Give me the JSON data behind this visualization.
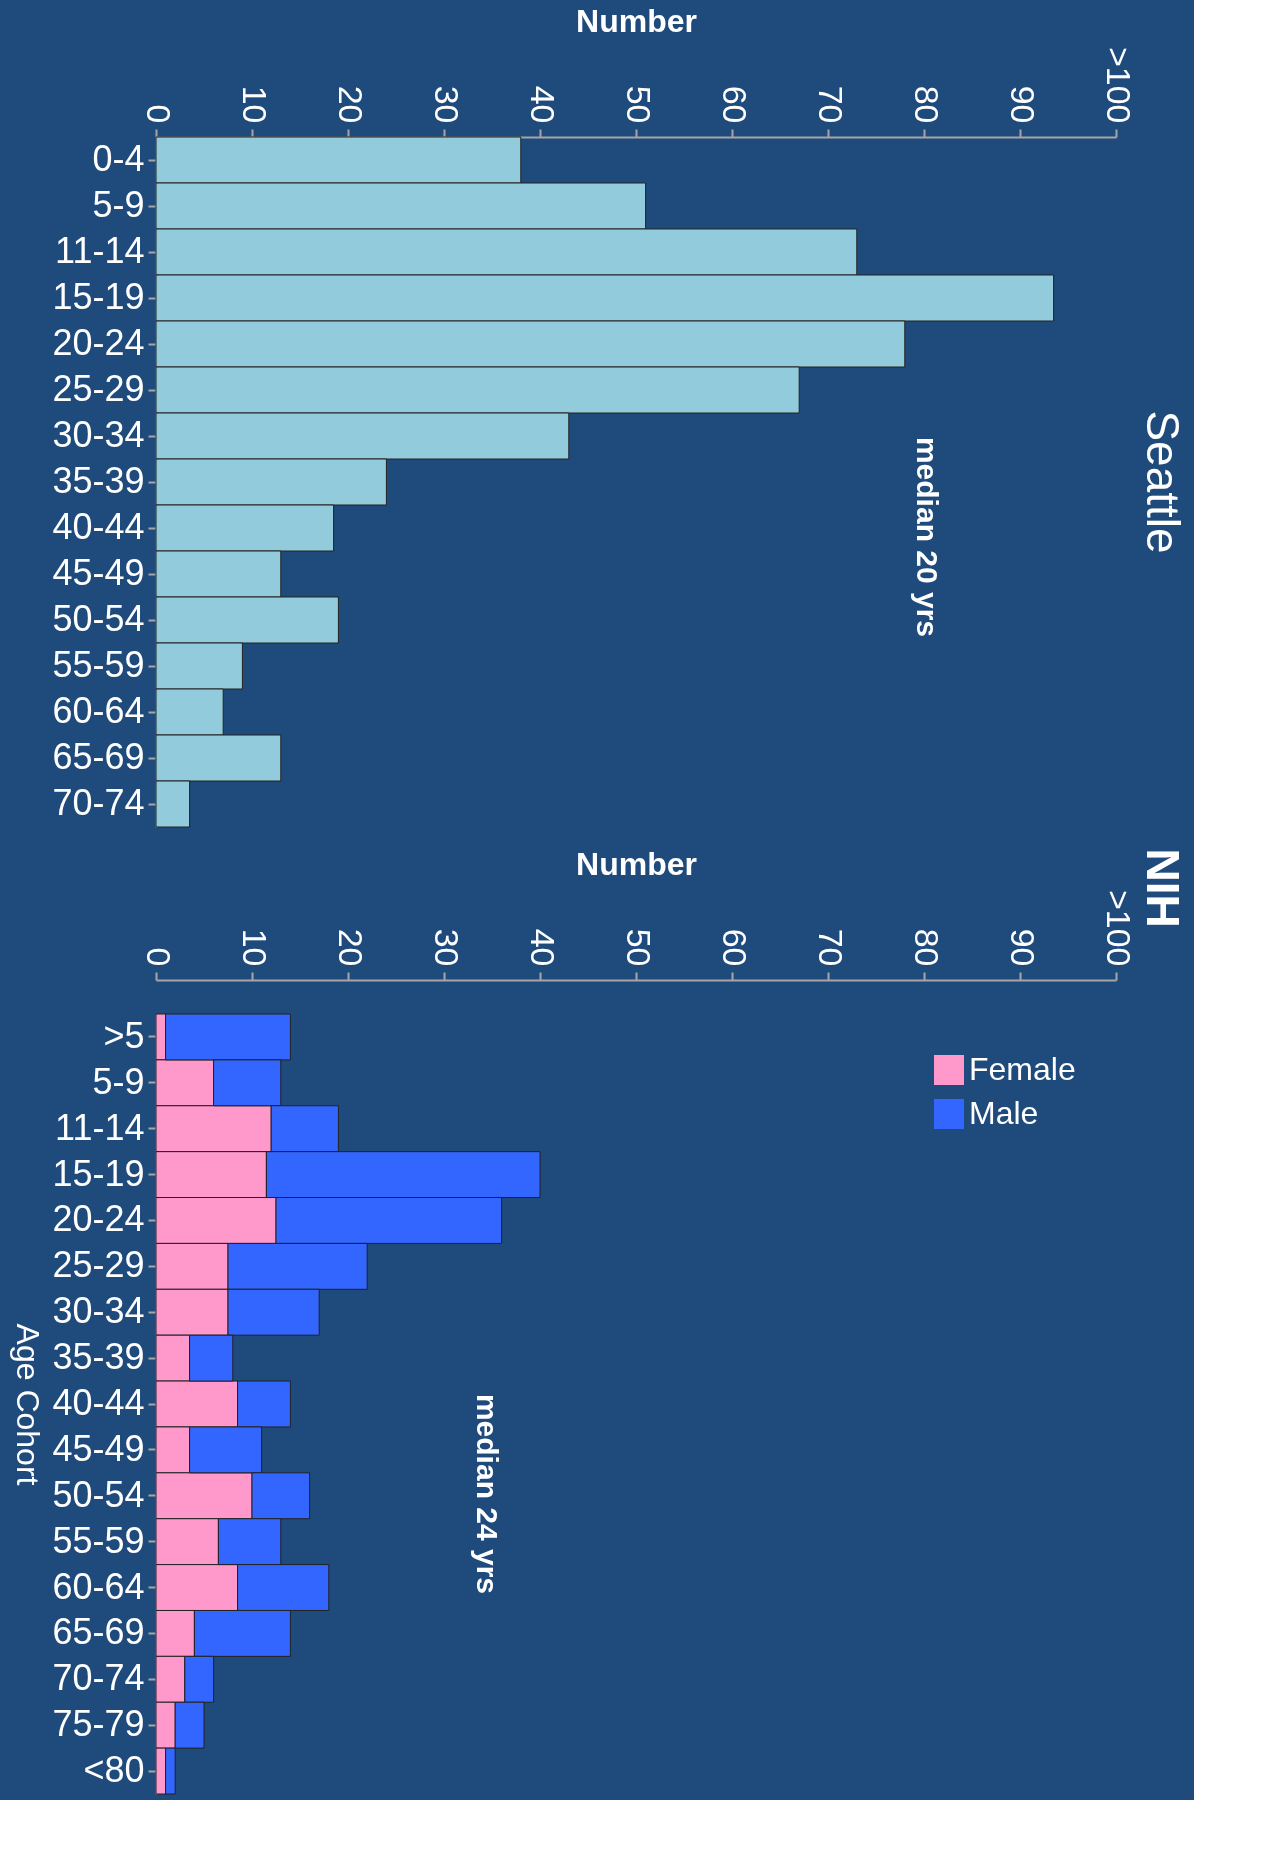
{
  "chart_data": [
    {
      "type": "bar",
      "orientation": "horizontal",
      "title": "Seattle",
      "xlabel": "Number",
      "categories": [
        "0-4",
        "5-9",
        "11-14",
        "15-19",
        "20-24",
        "25-29",
        "30-34",
        "35-39",
        "40-44",
        "45-49",
        "50-54",
        "55-59",
        "60-64",
        "65-69",
        "70-74"
      ],
      "values": [
        38,
        51,
        73,
        93.5,
        78,
        67,
        43,
        24,
        18.5,
        13,
        19,
        9,
        7,
        13,
        3.5
      ],
      "color": "#92cbdc",
      "xlim": [
        0,
        100
      ],
      "xticks": [
        0,
        10,
        20,
        30,
        40,
        50,
        60,
        70,
        80,
        90,
        {
          "value": 100,
          "label": ">100"
        }
      ],
      "annotations": [
        "median  20 yrs"
      ]
    },
    {
      "type": "bar",
      "orientation": "horizontal",
      "stacked": true,
      "title": "NIH",
      "xlabel": "Number",
      "ylabel": "Age Cohort",
      "categories": [
        ">5",
        "5-9",
        "11-14",
        "15-19",
        "20-24",
        "25-29",
        "30-34",
        "35-39",
        "40-44",
        "45-49",
        "50-54",
        "55-59",
        "60-64",
        "65-69",
        "70-74",
        "75-79",
        "<80"
      ],
      "series": [
        {
          "name": "Female",
          "color": "#ff99cc",
          "values": [
            1,
            6,
            12,
            11.5,
            12.5,
            7.5,
            7.5,
            3.5,
            8.5,
            3.5,
            10,
            6.5,
            8.5,
            4,
            3,
            2,
            1
          ]
        },
        {
          "name": "Male",
          "color": "#3366ff",
          "values": [
            13,
            7,
            7,
            28.5,
            23.5,
            14.5,
            9.5,
            4.5,
            5.5,
            7.5,
            6,
            6.5,
            9.5,
            10,
            3,
            3,
            1
          ]
        }
      ],
      "xlim": [
        0,
        100
      ],
      "xticks": [
        0,
        10,
        20,
        30,
        40,
        50,
        60,
        70,
        80,
        90,
        {
          "value": 100,
          "label": ">100"
        }
      ],
      "legend": "top right",
      "annotations": [
        "median 24 yrs"
      ]
    }
  ]
}
